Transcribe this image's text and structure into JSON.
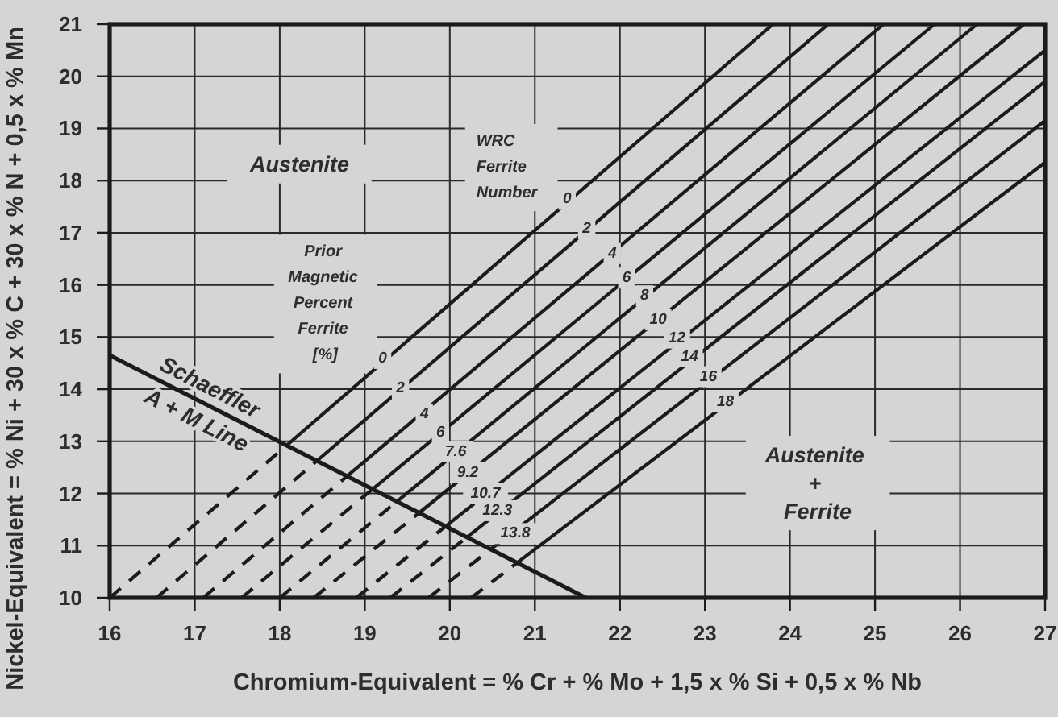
{
  "chart_data": {
    "type": "line",
    "xlabel": "Chromium-Equivalent = % Cr + % Mo + 1,5 x % Si + 0,5 x % Nb",
    "ylabel": "Nickel-Equivalent = % Ni + 30 x % C + 30 x % N + 0,5 x % Mn",
    "xlim": [
      16,
      27
    ],
    "xticks": [
      16,
      17,
      18,
      19,
      20,
      21,
      22,
      23,
      24,
      25,
      26,
      27
    ],
    "ylim": [
      10,
      21
    ],
    "yticks": [
      10,
      11,
      12,
      13,
      14,
      15,
      16,
      17,
      18,
      19,
      20,
      21
    ],
    "grid": true,
    "series": [
      {
        "color": "#1b1b1b",
        "line_style": "dashed",
        "x": [
          16,
          18.08
        ],
        "values": [
          10,
          12.92
        ]
      },
      {
        "color": "#1b1b1b",
        "x": [
          18.08,
          23.8
        ],
        "values": [
          12.92,
          21
        ]
      },
      {
        "color": "#1b1b1b",
        "line_style": "dashed",
        "x": [
          16.55,
          18.44
        ],
        "values": [
          10,
          12.63
        ]
      },
      {
        "color": "#1b1b1b",
        "x": [
          18.44,
          24.45
        ],
        "values": [
          12.63,
          21
        ]
      },
      {
        "color": "#1b1b1b",
        "line_style": "dashed",
        "x": [
          17.1,
          18.79
        ],
        "values": [
          10,
          12.33
        ]
      },
      {
        "color": "#1b1b1b",
        "x": [
          18.79,
          25.1
        ],
        "values": [
          12.33,
          21
        ]
      },
      {
        "color": "#1b1b1b",
        "line_style": "dashed",
        "x": [
          17.55,
          19.09
        ],
        "values": [
          10,
          12.08
        ]
      },
      {
        "color": "#1b1b1b",
        "x": [
          19.09,
          25.7
        ],
        "values": [
          12.08,
          21
        ]
      },
      {
        "color": "#1b1b1b",
        "line_style": "dashed",
        "x": [
          18.0,
          19.38
        ],
        "values": [
          10,
          11.85
        ]
      },
      {
        "color": "#1b1b1b",
        "x": [
          19.38,
          26.2
        ],
        "values": [
          11.85,
          21
        ]
      },
      {
        "color": "#1b1b1b",
        "line_style": "dashed",
        "x": [
          18.4,
          19.64
        ],
        "values": [
          10,
          11.63
        ]
      },
      {
        "color": "#1b1b1b",
        "x": [
          19.64,
          26.75
        ],
        "values": [
          11.63,
          21
        ]
      },
      {
        "color": "#1b1b1b",
        "line_style": "dashed",
        "x": [
          18.9,
          19.95
        ],
        "values": [
          10,
          11.37
        ]
      },
      {
        "color": "#1b1b1b",
        "x": [
          19.95,
          27
        ],
        "values": [
          11.37,
          20.5
        ]
      },
      {
        "color": "#1b1b1b",
        "line_style": "dashed",
        "x": [
          19.3,
          20.2
        ],
        "values": [
          10,
          11.16
        ]
      },
      {
        "color": "#1b1b1b",
        "x": [
          20.2,
          27
        ],
        "values": [
          11.16,
          19.9
        ]
      },
      {
        "color": "#1b1b1b",
        "line_style": "dashed",
        "x": [
          19.75,
          20.48
        ],
        "values": [
          10,
          10.93
        ]
      },
      {
        "color": "#1b1b1b",
        "x": [
          20.48,
          27
        ],
        "values": [
          10.93,
          19.15
        ]
      },
      {
        "color": "#1b1b1b",
        "line_style": "dashed",
        "x": [
          20.25,
          20.79
        ],
        "values": [
          10,
          10.67
        ]
      },
      {
        "color": "#1b1b1b",
        "x": [
          20.79,
          27
        ],
        "values": [
          10.67,
          18.35
        ]
      },
      {
        "name": "Schaeffler\nA + M Line",
        "color": "#1b1b1b",
        "x": [
          16,
          21.6
        ],
        "values": [
          14.65,
          10
        ]
      }
    ],
    "annotations": [
      "Austenite",
      "WRC\nFerrite\nNumber",
      "Prior\nMagnetic\nPercent\nFerrite\n[%]",
      "Austenite\n+\nFerrite",
      {
        "text": "0",
        "x": 21.38,
        "y": 17.64
      },
      {
        "text": "2",
        "x": 21.61,
        "y": 17.07
      },
      {
        "text": "4",
        "x": 21.91,
        "y": 16.6
      },
      {
        "text": "6",
        "x": 22.08,
        "y": 16.13
      },
      {
        "text": "8",
        "x": 22.29,
        "y": 15.79
      },
      {
        "text": "10",
        "x": 22.45,
        "y": 15.33
      },
      {
        "text": "12",
        "x": 22.67,
        "y": 14.98
      },
      {
        "text": "14",
        "x": 22.82,
        "y": 14.62
      },
      {
        "text": "16",
        "x": 23.04,
        "y": 14.24
      },
      {
        "text": "18",
        "x": 23.24,
        "y": 13.76
      },
      {
        "text": "0",
        "x": 19.21,
        "y": 14.59
      },
      {
        "text": "2",
        "x": 19.42,
        "y": 14.01
      },
      {
        "text": "4",
        "x": 19.7,
        "y": 13.52
      },
      {
        "text": "6",
        "x": 19.89,
        "y": 13.16
      },
      {
        "text": "7.6",
        "x": 20.07,
        "y": 12.8
      },
      {
        "text": "9.2",
        "x": 20.21,
        "y": 12.4
      },
      {
        "text": "10.7",
        "x": 20.42,
        "y": 12.0
      },
      {
        "text": "12.3",
        "x": 20.56,
        "y": 11.67
      },
      {
        "text": "13.8",
        "x": 20.77,
        "y": 11.23
      }
    ]
  }
}
